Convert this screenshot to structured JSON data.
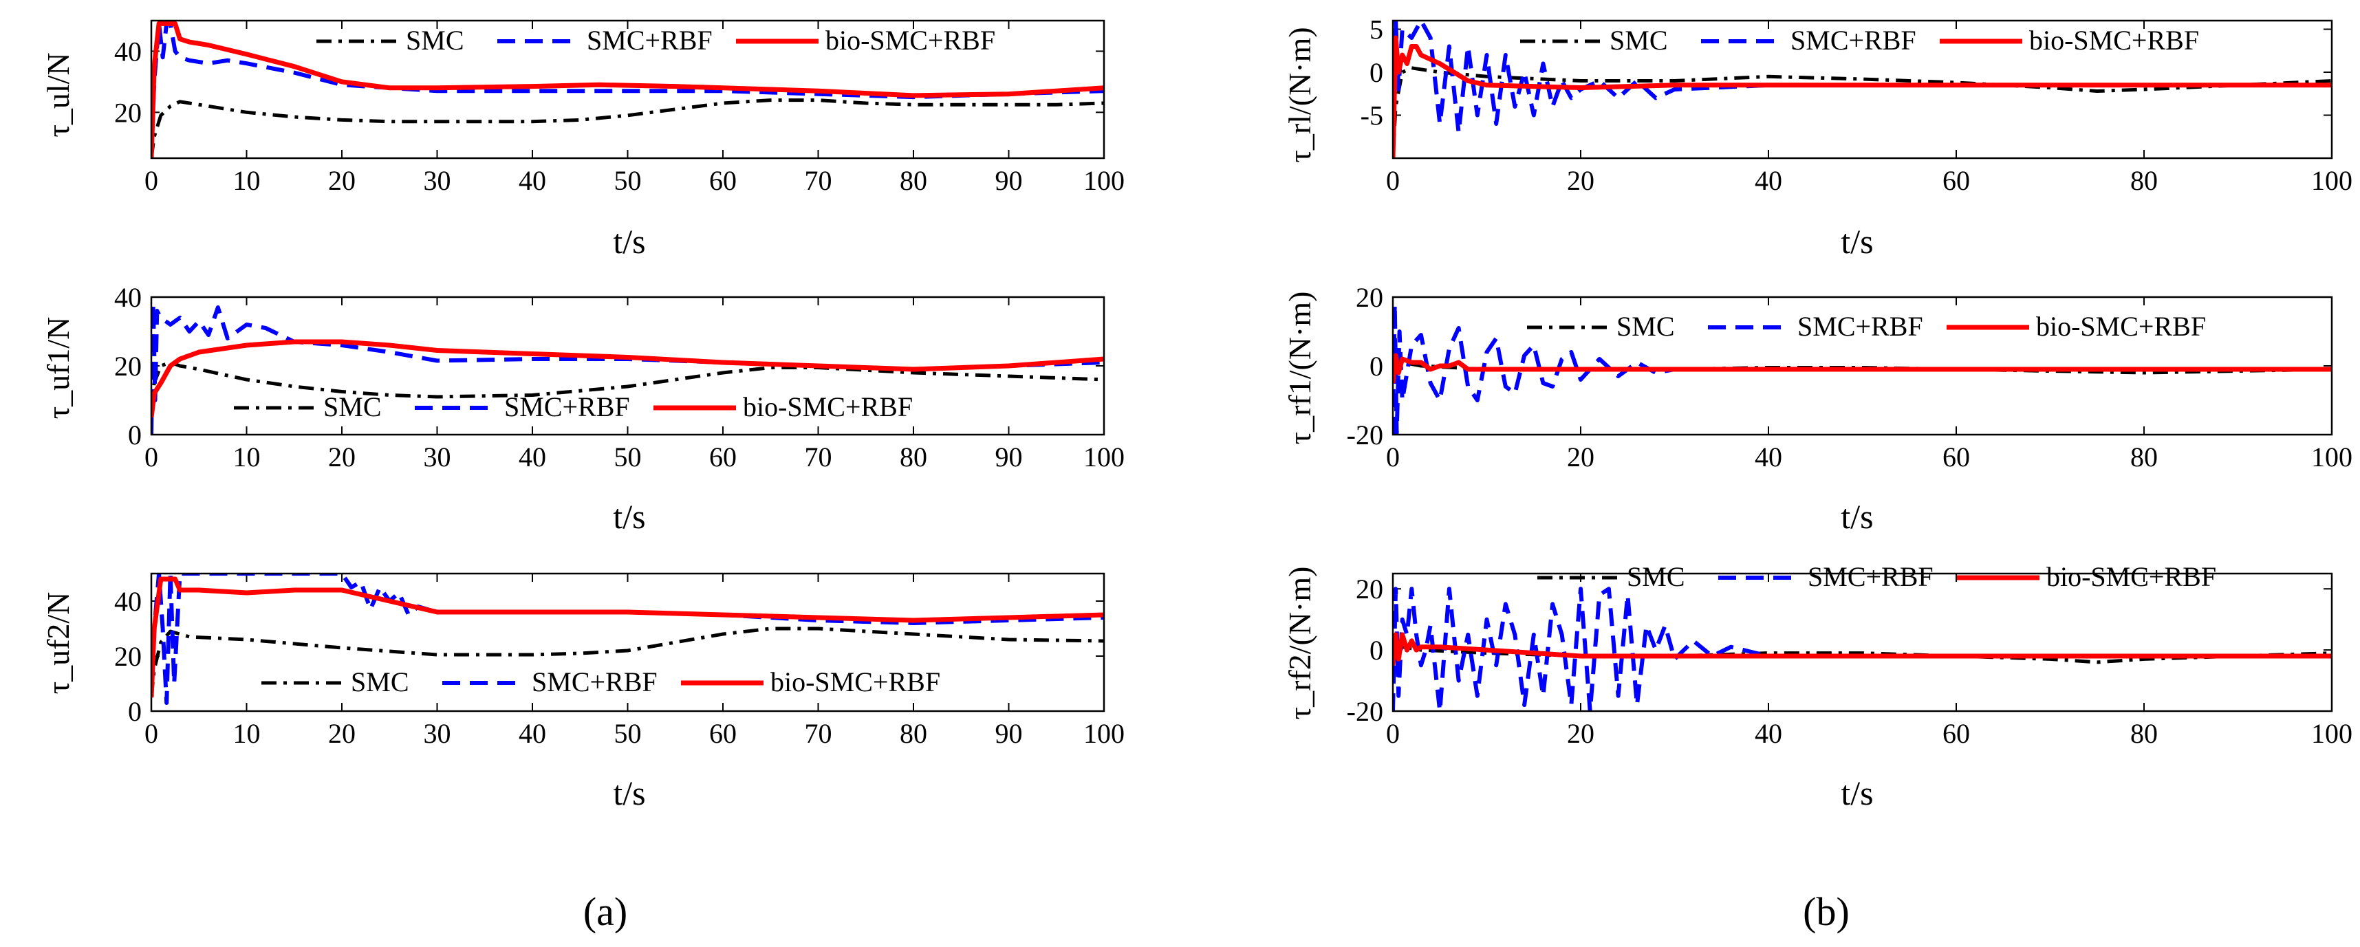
{
  "figure": {
    "panel_labels": [
      "(a)",
      "(b)"
    ],
    "legend_entries": [
      "SMC",
      "SMC+RBF",
      "bio-SMC+RBF"
    ],
    "x_axis_label": "t/s",
    "colors": {
      "SMC": "#000000",
      "SMC+RBF": "#0000ff",
      "bio-SMC+RBF": "#ff0000"
    }
  },
  "chart_data": [
    {
      "type": "line",
      "panel": "(a)",
      "ylabel": "τ_ul/N",
      "xlabel": "t/s",
      "xlim": [
        0,
        100
      ],
      "ylim": [
        5,
        50
      ],
      "xticks": [
        0,
        10,
        20,
        30,
        40,
        50,
        60,
        70,
        80,
        90,
        100
      ],
      "yticks": [
        20,
        40
      ],
      "legend_position": "top",
      "series": [
        {
          "name": "SMC",
          "style": "dash-dot",
          "color": "#000000",
          "x": [
            0,
            0.3,
            1,
            2,
            3,
            4,
            6,
            10,
            15,
            20,
            25,
            30,
            40,
            45,
            50,
            55,
            60,
            65,
            70,
            75,
            80,
            85,
            90,
            95,
            100
          ],
          "y": [
            5,
            12,
            19,
            22,
            23.5,
            23,
            22,
            20,
            18.5,
            17.5,
            17,
            17,
            17,
            17.5,
            19,
            21,
            23,
            24,
            24,
            23,
            22.5,
            22.5,
            22.5,
            22.5,
            23
          ]
        },
        {
          "name": "SMC+RBF",
          "style": "dashed",
          "color": "#0000ff",
          "x": [
            0,
            0.3,
            0.8,
            1.2,
            1.6,
            2,
            2.5,
            3,
            4,
            6,
            8,
            10,
            15,
            20,
            25,
            30,
            40,
            50,
            60,
            70,
            80,
            90,
            100
          ],
          "y": [
            5,
            30,
            49,
            38,
            49,
            49,
            40,
            38,
            37,
            36,
            37,
            36,
            33,
            29,
            28,
            27,
            27,
            27,
            27,
            26,
            25,
            26,
            27
          ]
        },
        {
          "name": "bio-SMC+RBF",
          "style": "solid",
          "color": "#ff0000",
          "x": [
            0,
            0.3,
            0.8,
            1,
            1.5,
            2.5,
            3,
            4,
            6,
            10,
            15,
            20,
            25,
            30,
            40,
            47,
            55,
            60,
            70,
            80,
            90,
            100
          ],
          "y": [
            5,
            35,
            49,
            49,
            49,
            49,
            44,
            43,
            42,
            39,
            35,
            30,
            28,
            28,
            28.5,
            29,
            28.5,
            28,
            27,
            25.5,
            26,
            28
          ]
        }
      ]
    },
    {
      "type": "line",
      "panel": "(a)",
      "ylabel": "τ_uf1/N",
      "xlabel": "t/s",
      "xlim": [
        0,
        100
      ],
      "ylim": [
        0,
        40
      ],
      "xticks": [
        0,
        10,
        20,
        30,
        40,
        50,
        60,
        70,
        80,
        90,
        100
      ],
      "yticks": [
        0,
        20,
        40
      ],
      "legend_position": "bottom",
      "series": [
        {
          "name": "SMC",
          "style": "dash-dot",
          "color": "#000000",
          "x": [
            0,
            0.3,
            1,
            2,
            3,
            5,
            10,
            15,
            20,
            25,
            30,
            40,
            50,
            60,
            65,
            70,
            80,
            90,
            100
          ],
          "y": [
            5,
            15,
            20,
            21,
            20,
            19,
            16,
            14,
            12.5,
            11.5,
            11,
            11.5,
            14,
            18,
            19.5,
            19.5,
            18,
            17,
            16
          ]
        },
        {
          "name": "SMC+RBF",
          "style": "dashed",
          "color": "#0000ff",
          "x": [
            0,
            0.2,
            0.4,
            0.6,
            1,
            2,
            3,
            4,
            5,
            6,
            7,
            8,
            10,
            12,
            15,
            20,
            25,
            30,
            40,
            50,
            60,
            70,
            80,
            90,
            100
          ],
          "y": [
            0,
            38,
            10,
            36,
            34,
            32,
            34,
            30,
            33,
            29,
            37,
            28,
            32,
            31,
            27,
            26,
            24,
            21.5,
            22,
            22,
            21,
            20,
            19,
            20,
            21
          ]
        },
        {
          "name": "bio-SMC+RBF",
          "style": "solid",
          "color": "#ff0000",
          "x": [
            0,
            0.3,
            1,
            2,
            3,
            5,
            10,
            15,
            20,
            25,
            30,
            40,
            50,
            60,
            70,
            80,
            90,
            100
          ],
          "y": [
            5,
            12,
            15,
            20,
            22,
            24,
            26,
            27,
            27,
            26,
            24.5,
            23.5,
            22.5,
            21,
            20,
            19,
            20,
            22
          ]
        }
      ]
    },
    {
      "type": "line",
      "panel": "(a)",
      "ylabel": "τ_uf2/N",
      "xlabel": "t/s",
      "xlim": [
        0,
        100
      ],
      "ylim": [
        0,
        50
      ],
      "xticks": [
        0,
        10,
        20,
        30,
        40,
        50,
        60,
        70,
        80,
        90,
        100
      ],
      "yticks": [
        0,
        20,
        40
      ],
      "legend_position": "bottom",
      "series": [
        {
          "name": "SMC",
          "style": "dash-dot",
          "color": "#000000",
          "x": [
            0,
            0.3,
            1,
            2,
            4,
            10,
            20,
            30,
            40,
            45,
            50,
            55,
            60,
            65,
            70,
            80,
            90,
            100
          ],
          "y": [
            5,
            15,
            25,
            29,
            27,
            26,
            23,
            20.5,
            20.5,
            21,
            22,
            25,
            28,
            30,
            30,
            28,
            26,
            25.5
          ]
        },
        {
          "name": "SMC+RBF",
          "style": "dashed",
          "color": "#0000ff",
          "x": [
            0,
            0.3,
            0.8,
            1.2,
            1.6,
            2,
            2.4,
            3,
            5,
            10,
            15,
            20,
            21,
            22,
            23,
            24,
            25,
            26,
            27,
            28,
            30,
            40,
            50,
            60,
            70,
            80,
            90,
            100
          ],
          "y": [
            5,
            30,
            50,
            30,
            3,
            50,
            10,
            50,
            50,
            50,
            50,
            50,
            45,
            47,
            37,
            45,
            40,
            43,
            35,
            38,
            36,
            36,
            36,
            35,
            33,
            32,
            33,
            34
          ]
        },
        {
          "name": "bio-SMC+RBF",
          "style": "solid",
          "color": "#ff0000",
          "x": [
            0,
            0.3,
            1,
            1.5,
            2.5,
            3,
            5,
            10,
            15,
            20,
            25,
            30,
            40,
            50,
            60,
            70,
            80,
            90,
            100
          ],
          "y": [
            5,
            30,
            48,
            48,
            48,
            44,
            44,
            43,
            44,
            44,
            40,
            36,
            36,
            36,
            35,
            34,
            33,
            34,
            35
          ]
        }
      ]
    },
    {
      "type": "line",
      "panel": "(b)",
      "ylabel": "τ_rl/(N·m)",
      "xlabel": "t/s",
      "xlim": [
        0,
        100
      ],
      "ylim": [
        -10,
        6
      ],
      "xticks": [
        0,
        20,
        40,
        60,
        80,
        100
      ],
      "yticks": [
        -5,
        0,
        5
      ],
      "legend_position": "top",
      "series": [
        {
          "name": "SMC",
          "style": "dash-dot",
          "color": "#000000",
          "x": [
            0,
            0.3,
            1,
            2,
            5,
            10,
            20,
            30,
            40,
            50,
            60,
            70,
            75,
            80,
            90,
            100
          ],
          "y": [
            -10,
            -4,
            0,
            0.5,
            0,
            -0.5,
            -1,
            -1,
            -0.5,
            -0.8,
            -1.2,
            -1.8,
            -2.2,
            -2,
            -1.5,
            -1
          ]
        },
        {
          "name": "SMC+RBF",
          "style": "dashed",
          "color": "#0000ff",
          "x": [
            0,
            0.3,
            0.6,
            1,
            2,
            3,
            4,
            5,
            6,
            7,
            8,
            9,
            10,
            11,
            12,
            13,
            14,
            15,
            16,
            17,
            18,
            19,
            20,
            22,
            24,
            26,
            28,
            30,
            40,
            50,
            60,
            70,
            80,
            90,
            100
          ],
          "y": [
            -10,
            6,
            -2,
            5,
            4,
            6,
            4,
            -6,
            3,
            -7,
            3,
            -5,
            2,
            -6,
            2,
            -4,
            0,
            -5,
            1,
            -4,
            -1,
            -3,
            -2,
            -1,
            -3,
            -1,
            -3,
            -2,
            -1.5,
            -1.5,
            -1.5,
            -1.5,
            -1.5,
            -1.5,
            -1.5
          ]
        },
        {
          "name": "bio-SMC+RBF",
          "style": "solid",
          "color": "#ff0000",
          "x": [
            0,
            0.3,
            0.6,
            1,
            1.5,
            2,
            2.5,
            3,
            5,
            8,
            10,
            20,
            30,
            40,
            50,
            60,
            70,
            80,
            90,
            100
          ],
          "y": [
            -10,
            4,
            0,
            2,
            1,
            3,
            3,
            2,
            1,
            -1,
            -1.5,
            -1.8,
            -1.5,
            -1.5,
            -1.5,
            -1.5,
            -1.5,
            -1.5,
            -1.5,
            -1.5
          ]
        }
      ]
    },
    {
      "type": "line",
      "panel": "(b)",
      "ylabel": "τ_rf1/(N·m)",
      "xlabel": "t/s",
      "xlim": [
        0,
        100
      ],
      "ylim": [
        -20,
        20
      ],
      "xticks": [
        0,
        20,
        40,
        60,
        80,
        100
      ],
      "yticks": [
        -20,
        0,
        20
      ],
      "legend_position": "top",
      "series": [
        {
          "name": "SMC",
          "style": "dash-dot",
          "color": "#000000",
          "x": [
            0,
            0.3,
            1,
            3,
            10,
            20,
            30,
            40,
            50,
            60,
            70,
            80,
            90,
            100
          ],
          "y": [
            -5,
            0,
            1,
            0,
            -1,
            -1,
            -1,
            -0.5,
            -0.5,
            -1,
            -1.5,
            -2,
            -1.5,
            -1
          ]
        },
        {
          "name": "SMC+RBF",
          "style": "dashed",
          "color": "#0000ff",
          "x": [
            0,
            0.2,
            0.4,
            0.7,
            1,
            2,
            3,
            4,
            5,
            6,
            7,
            8,
            9,
            10,
            11,
            12,
            13,
            14,
            15,
            16,
            17,
            18,
            19,
            20,
            22,
            24,
            26,
            28,
            30,
            40,
            50,
            60,
            70,
            80,
            90,
            100
          ],
          "y": [
            -20,
            18,
            -20,
            10,
            -10,
            6,
            9,
            -5,
            -10,
            5,
            11,
            -6,
            -10,
            4,
            8,
            -6,
            -8,
            3,
            6,
            -5,
            -6,
            2,
            4,
            -4,
            2,
            -3,
            1,
            -2,
            -1,
            -1,
            -1,
            -1,
            -1,
            -1,
            -1,
            -1
          ]
        },
        {
          "name": "bio-SMC+RBF",
          "style": "solid",
          "color": "#ff0000",
          "x": [
            0,
            0.3,
            0.6,
            1,
            2,
            3,
            4,
            5,
            6,
            7,
            8,
            10,
            20,
            40,
            60,
            80,
            100
          ],
          "y": [
            -5,
            3,
            -2,
            2,
            1,
            1,
            -1,
            0,
            0,
            1,
            -1,
            -1,
            -1,
            -1,
            -1,
            -1,
            -1
          ]
        }
      ]
    },
    {
      "type": "line",
      "panel": "(b)",
      "ylabel": "τ_rf2/(N·m)",
      "xlabel": "t/s",
      "xlim": [
        0,
        100
      ],
      "ylim": [
        -20,
        25
      ],
      "xticks": [
        0,
        20,
        40,
        60,
        80,
        100
      ],
      "yticks": [
        -20,
        0,
        20
      ],
      "legend_position": "top",
      "series": [
        {
          "name": "SMC",
          "style": "dash-dot",
          "color": "#000000",
          "x": [
            0,
            0.3,
            1,
            3,
            10,
            20,
            30,
            40,
            50,
            60,
            70,
            75,
            80,
            90,
            100
          ],
          "y": [
            -10,
            0,
            1,
            0,
            -1,
            -2,
            -2,
            -1,
            -1,
            -2,
            -3,
            -4,
            -3,
            -2,
            -1
          ]
        },
        {
          "name": "SMC+RBF",
          "style": "dashed",
          "color": "#0000ff",
          "x": [
            0,
            0.3,
            0.6,
            1,
            1.5,
            2,
            2.5,
            3,
            3.5,
            4,
            5,
            6,
            7,
            8,
            9,
            10,
            11,
            12,
            13,
            14,
            15,
            16,
            17,
            18,
            19,
            20,
            21,
            22,
            23,
            24,
            25,
            26,
            27,
            28,
            29,
            30,
            32,
            34,
            36,
            40,
            50,
            60,
            70,
            80,
            90,
            100
          ],
          "y": [
            -20,
            20,
            -15,
            10,
            5,
            20,
            5,
            -5,
            0,
            8,
            -20,
            20,
            -10,
            5,
            -15,
            10,
            -5,
            15,
            5,
            -18,
            5,
            -15,
            15,
            5,
            -18,
            20,
            -20,
            18,
            20,
            -15,
            18,
            -18,
            8,
            0,
            8,
            -3,
            3,
            -2,
            1,
            -2,
            -2,
            -2,
            -2,
            -2,
            -2,
            -2
          ]
        },
        {
          "name": "bio-SMC+RBF",
          "style": "solid",
          "color": "#ff0000",
          "x": [
            0,
            0.3,
            0.6,
            1,
            1.5,
            2,
            2.5,
            3,
            5,
            10,
            20,
            40,
            60,
            80,
            100
          ],
          "y": [
            -5,
            5,
            -3,
            5,
            0,
            3,
            0,
            1,
            1,
            0,
            -2,
            -2,
            -2,
            -2,
            -2
          ]
        }
      ]
    }
  ]
}
